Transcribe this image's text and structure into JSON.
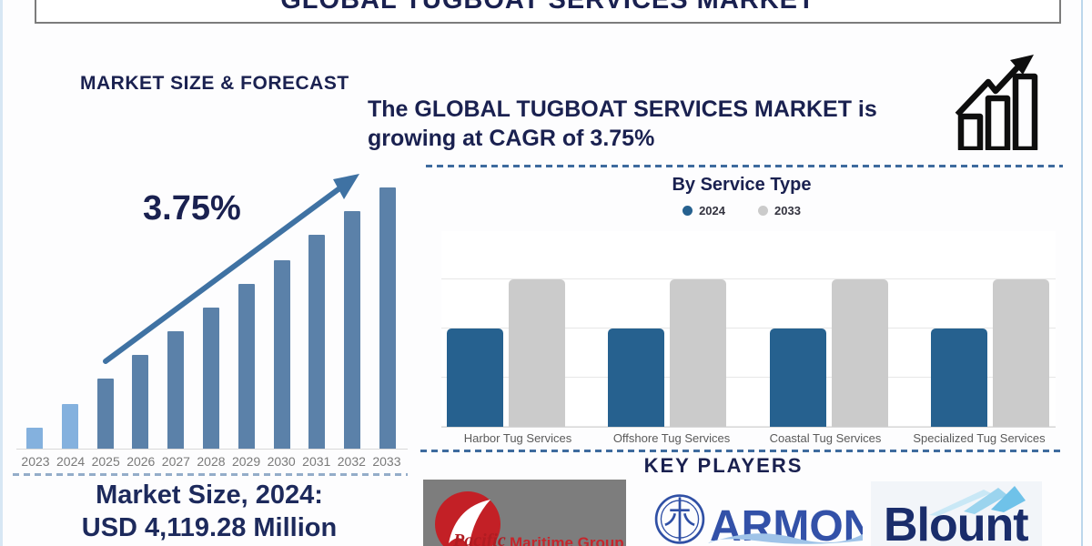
{
  "window": {
    "title": "GLOBAL TUGBOAT SERVICES MARKET"
  },
  "colors": {
    "navy_text": "#1a2150",
    "arrow": "#3f72a3",
    "dashed_separator": "#3e6b9e",
    "bar_actual_light_blue": "#84b1de",
    "bar_forecast_steel_blue": "#5b81a9",
    "service_2024_blue": "#26618f",
    "service_2033_gray": "#cbcbcb"
  },
  "left_panel": {
    "section_title": "MARKET SIZE & FORECAST",
    "cagr_annotation": "3.75%",
    "market_size_line1": "Market Size, 2024:",
    "market_size_line2": "USD 4,119.28 Million"
  },
  "right_panel": {
    "headline_lines": [
      "The GLOBAL TUGBOAT SERVICES MARKET is",
      "growing at CAGR of 3.75%"
    ],
    "key_players": {
      "title": "KEY PLAYERS",
      "logos": [
        {
          "name": "Pacific Maritime Group",
          "text_primary": "Pacific",
          "text_secondary": "Maritime Group"
        },
        {
          "name": "Armon",
          "text_primary": "ARMON"
        },
        {
          "name": "Blount",
          "text_primary": "Blount"
        }
      ]
    }
  },
  "chart_data": [
    {
      "type": "bar",
      "title": "MARKET SIZE & FORECAST",
      "categories": [
        "2023",
        "2024",
        "2025",
        "2026",
        "2027",
        "2028",
        "2029",
        "2030",
        "2031",
        "2032",
        "2033"
      ],
      "values_relative_pct": [
        8,
        17,
        27,
        36,
        45,
        54,
        63,
        72,
        82,
        91,
        100
      ],
      "annotation": "3.75%",
      "known_point": {
        "year": "2024",
        "value": "USD 4,119.28 Million"
      },
      "xlabel": "",
      "ylabel": "",
      "axis_note": "no value axis shown; bar heights rise linearly",
      "bar_color_actual": "#84b1de",
      "bar_color_forecast": "#5b81a9",
      "actual_indices": [
        0,
        1
      ],
      "grid": false,
      "legend_position": "none"
    },
    {
      "type": "bar",
      "title": "By Service Type",
      "categories": [
        "Harbor Tug Services",
        "Offshore Tug Services",
        "Coastal Tug Services",
        "Specialized Tug Services"
      ],
      "series": [
        {
          "name": "2024",
          "color": "#26618f",
          "values_relative": [
            2,
            2,
            2,
            2
          ]
        },
        {
          "name": "2033",
          "color": "#cbcbcb",
          "values_relative": [
            3,
            3,
            3,
            3
          ]
        }
      ],
      "ylim_units": [
        0,
        4
      ],
      "xlabel": "",
      "ylabel": "",
      "axis_note": "no value axis labels shown; 2033 bars reach 3rd gridline, 2024 bars reach 2nd gridline",
      "grid": true,
      "legend_position": "top"
    }
  ]
}
